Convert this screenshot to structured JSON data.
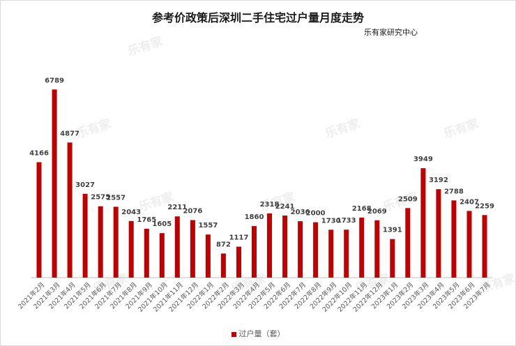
{
  "title": "参考价政策后深圳二手住宅过户量月度走势",
  "source": "乐有家研究中心",
  "watermark": "乐有家",
  "colors": {
    "bar": "#c00000",
    "label": "#404040",
    "axis": "#bfbfbf"
  },
  "chart_data": {
    "type": "bar",
    "categories": [
      "2021年2月",
      "2021年3月",
      "2021年4月",
      "2021年5月",
      "2021年6月",
      "2021年7月",
      "2021年8月",
      "2021年9月",
      "2021年10月",
      "2021年11月",
      "2021年12月",
      "2022年1月",
      "2022年2月",
      "2022年3月",
      "2022年4月",
      "2022年5月",
      "2022年6月",
      "2022年7月",
      "2022年8月",
      "2022年9月",
      "2022年10月",
      "2022年11月",
      "2022年12月",
      "2023年1月",
      "2023年2月",
      "2023年3月",
      "2023年4月",
      "2023年5月",
      "2023年6月",
      "2023年7月"
    ],
    "series": [
      {
        "name": "过户量（套）",
        "values": [
          4166,
          6789,
          4877,
          3027,
          2575,
          2557,
          2043,
          1765,
          1605,
          2211,
          2076,
          1557,
          872,
          1117,
          1860,
          2318,
          2241,
          2036,
          2000,
          1730,
          1733,
          2168,
          2069,
          1391,
          2509,
          3949,
          3192,
          2788,
          2407,
          2259
        ]
      }
    ],
    "ylim": [
      0,
      7200
    ],
    "grid": false,
    "legend": "bottom"
  }
}
